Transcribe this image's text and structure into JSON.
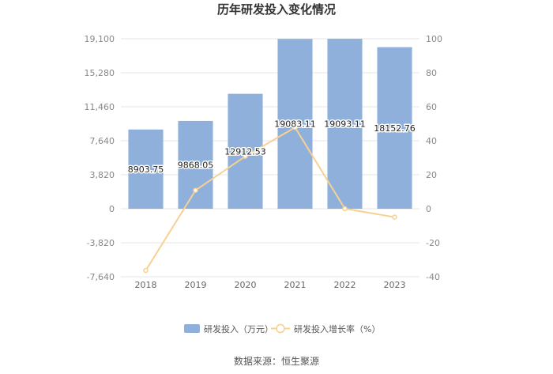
{
  "chart_data": {
    "type": "bar",
    "title": "历年研发投入变化情况",
    "categories": [
      "2018",
      "2019",
      "2020",
      "2021",
      "2022",
      "2023"
    ],
    "series": [
      {
        "name": "研发投入（万元）",
        "type": "bar",
        "axis": "left",
        "values": [
          8903.75,
          9868.05,
          12912.53,
          19083.11,
          19093.11,
          18152.76
        ],
        "labels": [
          "8903.75",
          "9868.05",
          "12912.53",
          "19083.11",
          "19093.11",
          "18152.76"
        ],
        "color": "#8eb0db"
      },
      {
        "name": "研发投入增长率（%）",
        "type": "line",
        "axis": "right",
        "values": [
          -36.3,
          10.83,
          30.85,
          47.79,
          0.05,
          -4.93
        ],
        "color": "#f7d193"
      }
    ],
    "y_left": {
      "ticks": [
        -7640,
        -3820,
        0,
        3820,
        7640,
        11460,
        15280,
        19100
      ],
      "tick_labels": [
        "-7,640",
        "-3,820",
        "0",
        "3,820",
        "7,640",
        "11,460",
        "15,280",
        "19,100"
      ],
      "ylim": [
        -7640,
        19100
      ]
    },
    "y_right": {
      "ticks": [
        -40,
        -20,
        0,
        20,
        40,
        60,
        80,
        100
      ],
      "tick_labels": [
        "-40",
        "-20",
        "0",
        "20",
        "40",
        "60",
        "80",
        "100"
      ],
      "ylim": [
        -40,
        100
      ]
    },
    "grid": true,
    "legend_position": "bottom-center"
  },
  "footer": {
    "source": "数据来源：恒生聚源"
  }
}
